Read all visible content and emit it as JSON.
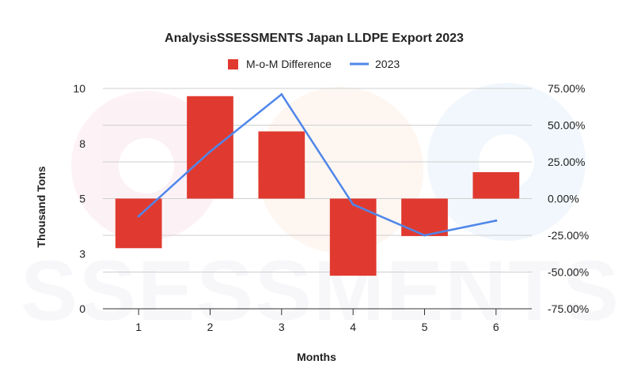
{
  "chart_data": {
    "type": "bar",
    "title": "AnalysisSSESSMENTS Japan LLDPE Export 2023",
    "xlabel": "Months",
    "ylabel": "Thousand Tons",
    "categories": [
      "1",
      "2",
      "3",
      "4",
      "5",
      "6"
    ],
    "y_ticks": [
      "0",
      "3",
      "5",
      "8",
      "10"
    ],
    "y2_ticks": [
      "-75.00%",
      "-50.00%",
      "-25.00%",
      "0.00%",
      "25.00%",
      "50.00%",
      "75.00%"
    ],
    "ylim": [
      0,
      10
    ],
    "y2lim": [
      -75,
      75
    ],
    "bar_baseline": 5,
    "grid": true,
    "legend_position": "top",
    "series": [
      {
        "name": "M-o-M Difference",
        "type": "bar",
        "axis": "left",
        "color": "#e03a30",
        "values": [
          2.75,
          9.65,
          8.05,
          1.5,
          3.3,
          6.2
        ]
      },
      {
        "name": "2023",
        "type": "line",
        "axis": "right",
        "color": "#4f86ea",
        "values_percent": [
          -12,
          32,
          71,
          -4,
          -25,
          -15
        ]
      }
    ]
  },
  "watermark": {
    "text": "SSESSMENTS"
  }
}
